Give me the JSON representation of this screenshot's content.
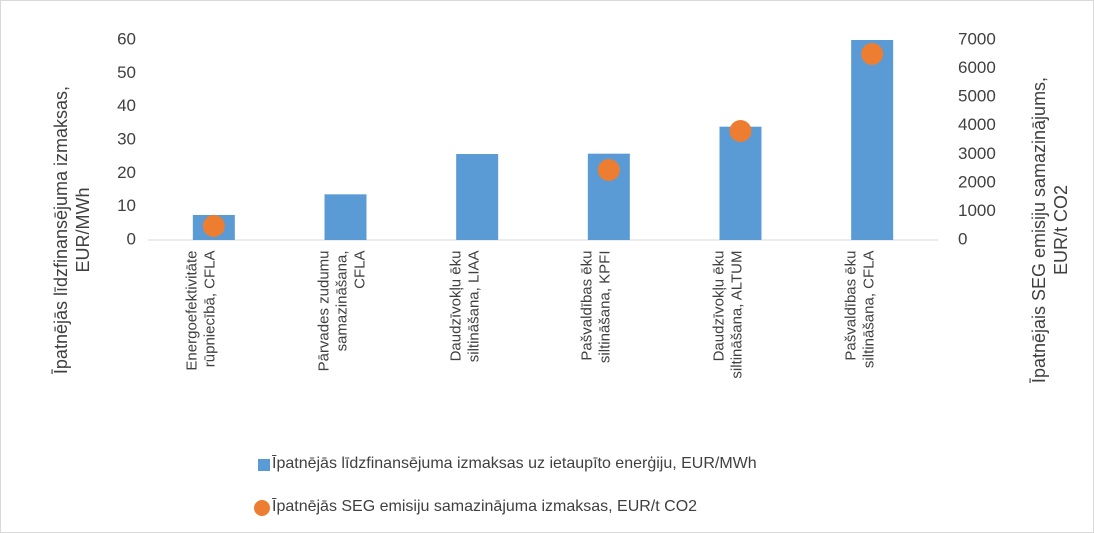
{
  "chart_data": {
    "type": "bar",
    "categories": [
      "Energoefektivitāte rūpniecībā, CFLA",
      "Pārvades zudumu samazināšana, CFLA",
      "Daudzīvokļu ēku siltināšana, LIAA",
      "Pašvaldības ēku siltināšana, KPFI",
      "Daudzīvokļu ēku siltināšana, ALTUM",
      "Pašvaldības ēku siltināšana, CFLA"
    ],
    "y_label": "Īpatnējās līdzfinansējuma izmaksas, EUR/MWh",
    "y2_label": "Īpatnējais SEG emisiju samazinājums, EUR/t CO2",
    "series": [
      {
        "name": "Īpatnējās līdzfinansējuma izmaksas uz ietaupīto enerģiju, EUR/MWh",
        "type": "bar",
        "color": "#5b9bd5",
        "values": [
          7.5,
          13.7,
          25.8,
          25.9,
          34,
          60
        ]
      },
      {
        "name": "Īpatnējās SEG emisiju samazinājuma izmaksas, EUR/t CO2",
        "type": "scatter",
        "axis": "y2",
        "color": "#ed7d31",
        "values": [
          490,
          null,
          null,
          2450,
          3815,
          6510
        ]
      }
    ],
    "ylim": [
      0,
      60
    ],
    "yticks": [
      0,
      10,
      20,
      30,
      40,
      50,
      60
    ],
    "y2lim": [
      0,
      7000
    ],
    "y2ticks": [
      0,
      1000,
      2000,
      3000,
      4000,
      5000,
      6000,
      7000
    ],
    "grid": false,
    "legend": "bottom"
  }
}
